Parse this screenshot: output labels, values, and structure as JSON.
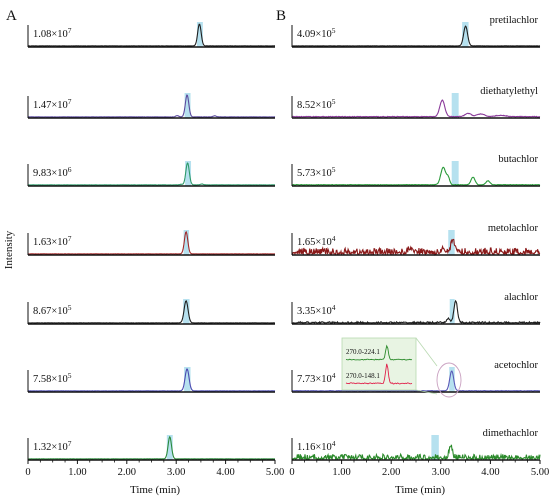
{
  "panels": [
    {
      "letter": "A",
      "traces": [
        {
          "max": "1.08×10",
          "exp": "7",
          "rt": 3.47,
          "w": 0.035,
          "h": 1.0,
          "color": "#1f1f1f",
          "noise": 0.01,
          "hl": [
            3.42,
            3.54
          ],
          "extra": []
        },
        {
          "max": "1.47×10",
          "exp": "7",
          "rt": 3.22,
          "w": 0.035,
          "h": 1.0,
          "color": "#5b4a9e",
          "noise": 0.01,
          "hl": [
            3.17,
            3.29
          ],
          "extra": [
            {
              "rt": 3.02,
              "w": 0.03,
              "h": 0.06
            },
            {
              "rt": 3.78,
              "w": 0.03,
              "h": 0.05
            }
          ]
        },
        {
          "max": "9.83×10",
          "exp": "6",
          "rt": 3.23,
          "w": 0.035,
          "h": 1.0,
          "color": "#2e9a6a",
          "noise": 0.01,
          "hl": [
            3.18,
            3.3
          ],
          "extra": [
            {
              "rt": 3.52,
              "w": 0.03,
              "h": 0.04
            },
            {
              "rt": 3.1,
              "w": 0.03,
              "h": 0.03
            }
          ]
        },
        {
          "max": "1.63×10",
          "exp": "7",
          "rt": 3.2,
          "w": 0.035,
          "h": 1.0,
          "color": "#a12a2a",
          "noise": 0.01,
          "hl": [
            3.15,
            3.26
          ],
          "extra": []
        },
        {
          "max": "8.67×10",
          "exp": "5",
          "rt": 3.2,
          "w": 0.04,
          "h": 1.0,
          "color": "#1f1f1f",
          "noise": 0.01,
          "hl": [
            3.14,
            3.27
          ],
          "extra": []
        },
        {
          "max": "7.58×10",
          "exp": "5",
          "rt": 3.22,
          "w": 0.04,
          "h": 1.0,
          "color": "#4a4ab0",
          "noise": 0.01,
          "hl": [
            3.16,
            3.29
          ],
          "extra": []
        },
        {
          "max": "1.32×10",
          "exp": "7",
          "rt": 2.87,
          "w": 0.035,
          "h": 1.0,
          "color": "#2a8a3a",
          "noise": 0.01,
          "hl": [
            2.81,
            2.93
          ],
          "extra": []
        }
      ]
    },
    {
      "letter": "B",
      "traces": [
        {
          "max": "4.09×10",
          "exp": "5",
          "name": "pretilachlor",
          "rt": 3.5,
          "w": 0.04,
          "h": 0.9,
          "color": "#1f1f1f",
          "noise": 0.01,
          "hl": [
            3.43,
            3.56
          ],
          "extra": []
        },
        {
          "max": "8.52×10",
          "exp": "5",
          "name": "diethatylethyl",
          "rt": 3.03,
          "w": 0.05,
          "h": 0.75,
          "color": "#8a3a9a",
          "noise": 0.03,
          "hl": [
            3.22,
            3.36
          ],
          "extra": [
            {
              "rt": 3.55,
              "w": 0.06,
              "h": 0.15
            },
            {
              "rt": 3.8,
              "w": 0.08,
              "h": 0.12
            },
            {
              "rt": 4.2,
              "w": 0.1,
              "h": 0.06
            }
          ]
        },
        {
          "max": "5.73×10",
          "exp": "5",
          "name": "butachlor",
          "rt": 3.05,
          "w": 0.05,
          "h": 0.8,
          "color": "#2a9a3a",
          "noise": 0.02,
          "hl": [
            3.22,
            3.36
          ],
          "extra": [
            {
              "rt": 3.65,
              "w": 0.04,
              "h": 0.35
            },
            {
              "rt": 3.95,
              "w": 0.04,
              "h": 0.18
            },
            {
              "rt": 3.15,
              "w": 0.03,
              "h": 0.3
            }
          ]
        },
        {
          "max": "1.65×10",
          "exp": "4",
          "name": "metolachlor",
          "rt": 3.25,
          "w": 0.05,
          "h": 0.45,
          "color": "#8a1a1a",
          "noise": 0.28,
          "hl": [
            3.15,
            3.28
          ],
          "extra": [
            {
              "rt": 3.05,
              "w": 0.03,
              "h": 0.25
            },
            {
              "rt": 2.4,
              "w": 0.04,
              "h": 0.2
            }
          ]
        },
        {
          "max": "3.35×10",
          "exp": "4",
          "name": "alachlor",
          "rt": 3.3,
          "w": 0.035,
          "h": 1.0,
          "color": "#1f1f1f",
          "noise": 0.06,
          "hl": [
            3.18,
            3.28
          ],
          "extra": [
            {
              "rt": 3.15,
              "w": 0.03,
              "h": 0.2
            }
          ]
        },
        {
          "max": "7.73×10",
          "exp": "4",
          "name": "acetochlor",
          "rt": 3.22,
          "w": 0.04,
          "h": 0.9,
          "color": "#5a5ab8",
          "noise": 0.02,
          "hl": [
            3.17,
            3.28
          ],
          "extra": []
        },
        {
          "max": "1.16×10",
          "exp": "4",
          "name": "dimethachlor",
          "rt": 3.2,
          "w": 0.03,
          "h": 0.55,
          "color": "#2a8a2a",
          "noise": 0.22,
          "hl": [
            2.81,
            2.96
          ],
          "extra": []
        }
      ]
    }
  ],
  "inset": {
    "labels": [
      "270.0-224.1",
      "270.0-148.1"
    ],
    "colors": [
      "#2a8a2a",
      "#e0204a"
    ]
  },
  "axes": {
    "ylabel": "Intensity",
    "xlabel": "Time (min)",
    "ticks": [
      "0",
      "1.00",
      "2.00",
      "3.00",
      "4.00",
      "5.00"
    ],
    "xlim": [
      0,
      5
    ]
  },
  "chart_data": {
    "type": "line",
    "xlabel": "Time (min)",
    "ylabel": "Intensity",
    "xlim": [
      0,
      5
    ],
    "panels": [
      {
        "panel": "A",
        "series": [
          {
            "max_intensity": "1.08×10^7",
            "peak_rt_min": 3.47
          },
          {
            "max_intensity": "1.47×10^7",
            "peak_rt_min": 3.22
          },
          {
            "max_intensity": "9.83×10^6",
            "peak_rt_min": 3.23
          },
          {
            "max_intensity": "1.63×10^7",
            "peak_rt_min": 3.2
          },
          {
            "max_intensity": "8.67×10^5",
            "peak_rt_min": 3.2
          },
          {
            "max_intensity": "7.58×10^5",
            "peak_rt_min": 3.22
          },
          {
            "max_intensity": "1.32×10^7",
            "peak_rt_min": 2.87
          }
        ]
      },
      {
        "panel": "B",
        "series": [
          {
            "name": "pretilachlor",
            "max_intensity": "4.09×10^5",
            "peak_rt_min": 3.5
          },
          {
            "name": "diethatylethyl",
            "max_intensity": "8.52×10^5",
            "peak_rt_min": 3.03
          },
          {
            "name": "butachlor",
            "max_intensity": "5.73×10^5",
            "peak_rt_min": 3.05
          },
          {
            "name": "metolachlor",
            "max_intensity": "1.65×10^4",
            "peak_rt_min": 3.25
          },
          {
            "name": "alachlor",
            "max_intensity": "3.35×10^4",
            "peak_rt_min": 3.3
          },
          {
            "name": "acetochlor",
            "max_intensity": "7.73×10^4",
            "peak_rt_min": 3.22
          },
          {
            "name": "dimethachlor",
            "max_intensity": "1.16×10^4",
            "peak_rt_min": 3.2
          }
        ]
      }
    ]
  }
}
